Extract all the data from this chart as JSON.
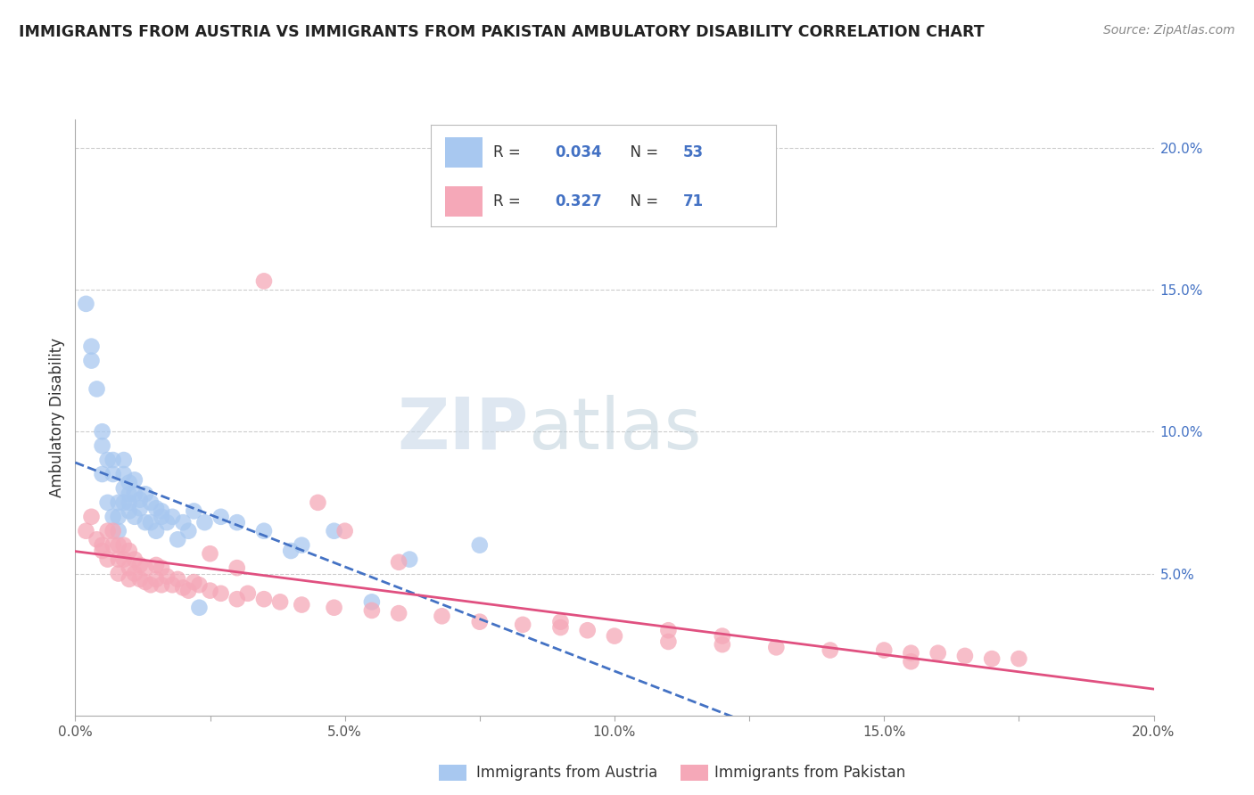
{
  "title": "IMMIGRANTS FROM AUSTRIA VS IMMIGRANTS FROM PAKISTAN AMBULATORY DISABILITY CORRELATION CHART",
  "source": "Source: ZipAtlas.com",
  "ylabel": "Ambulatory Disability",
  "xlim": [
    0.0,
    0.2
  ],
  "ylim": [
    0.0,
    0.21
  ],
  "austria_R": "0.034",
  "austria_N": "53",
  "pakistan_R": "0.327",
  "pakistan_N": "71",
  "austria_color": "#a8c8f0",
  "pakistan_color": "#f5a8b8",
  "austria_line_color": "#4472c4",
  "pakistan_line_color": "#e05080",
  "right_tick_color": "#4472c4",
  "watermark_zip": "ZIP",
  "watermark_atlas": "atlas",
  "legend_austria": "Immigrants from Austria",
  "legend_pakistan": "Immigrants from Pakistan",
  "austria_x": [
    0.002,
    0.003,
    0.003,
    0.004,
    0.005,
    0.005,
    0.005,
    0.006,
    0.006,
    0.007,
    0.007,
    0.007,
    0.008,
    0.008,
    0.008,
    0.009,
    0.009,
    0.009,
    0.009,
    0.01,
    0.01,
    0.01,
    0.01,
    0.011,
    0.011,
    0.011,
    0.012,
    0.012,
    0.013,
    0.013,
    0.014,
    0.014,
    0.015,
    0.015,
    0.016,
    0.016,
    0.017,
    0.018,
    0.019,
    0.02,
    0.021,
    0.022,
    0.023,
    0.024,
    0.027,
    0.03,
    0.035,
    0.04,
    0.042,
    0.048,
    0.055,
    0.062,
    0.075
  ],
  "austria_y": [
    0.145,
    0.125,
    0.13,
    0.115,
    0.095,
    0.1,
    0.085,
    0.09,
    0.075,
    0.07,
    0.085,
    0.09,
    0.065,
    0.07,
    0.075,
    0.075,
    0.08,
    0.085,
    0.09,
    0.075,
    0.078,
    0.082,
    0.072,
    0.078,
    0.083,
    0.07,
    0.076,
    0.073,
    0.078,
    0.068,
    0.075,
    0.068,
    0.073,
    0.065,
    0.072,
    0.07,
    0.068,
    0.07,
    0.062,
    0.068,
    0.065,
    0.072,
    0.038,
    0.068,
    0.07,
    0.068,
    0.065,
    0.058,
    0.06,
    0.065,
    0.04,
    0.055,
    0.06
  ],
  "pakistan_x": [
    0.002,
    0.003,
    0.004,
    0.005,
    0.005,
    0.006,
    0.006,
    0.007,
    0.007,
    0.008,
    0.008,
    0.008,
    0.009,
    0.009,
    0.01,
    0.01,
    0.01,
    0.011,
    0.011,
    0.012,
    0.012,
    0.013,
    0.013,
    0.014,
    0.015,
    0.015,
    0.016,
    0.016,
    0.017,
    0.018,
    0.019,
    0.02,
    0.021,
    0.022,
    0.023,
    0.025,
    0.027,
    0.03,
    0.032,
    0.035,
    0.038,
    0.042,
    0.048,
    0.055,
    0.06,
    0.068,
    0.075,
    0.083,
    0.09,
    0.095,
    0.1,
    0.11,
    0.12,
    0.13,
    0.14,
    0.15,
    0.155,
    0.16,
    0.165,
    0.17,
    0.175,
    0.06,
    0.09,
    0.11,
    0.12,
    0.035,
    0.045,
    0.05,
    0.025,
    0.03,
    0.155
  ],
  "pakistan_y": [
    0.065,
    0.07,
    0.062,
    0.058,
    0.06,
    0.065,
    0.055,
    0.06,
    0.065,
    0.055,
    0.06,
    0.05,
    0.055,
    0.06,
    0.048,
    0.052,
    0.058,
    0.05,
    0.055,
    0.048,
    0.053,
    0.047,
    0.052,
    0.046,
    0.048,
    0.053,
    0.046,
    0.052,
    0.049,
    0.046,
    0.048,
    0.045,
    0.044,
    0.047,
    0.046,
    0.044,
    0.043,
    0.041,
    0.043,
    0.041,
    0.04,
    0.039,
    0.038,
    0.037,
    0.036,
    0.035,
    0.033,
    0.032,
    0.031,
    0.03,
    0.028,
    0.026,
    0.025,
    0.024,
    0.023,
    0.023,
    0.022,
    0.022,
    0.021,
    0.02,
    0.02,
    0.054,
    0.033,
    0.03,
    0.028,
    0.153,
    0.075,
    0.065,
    0.057,
    0.052,
    0.019
  ]
}
